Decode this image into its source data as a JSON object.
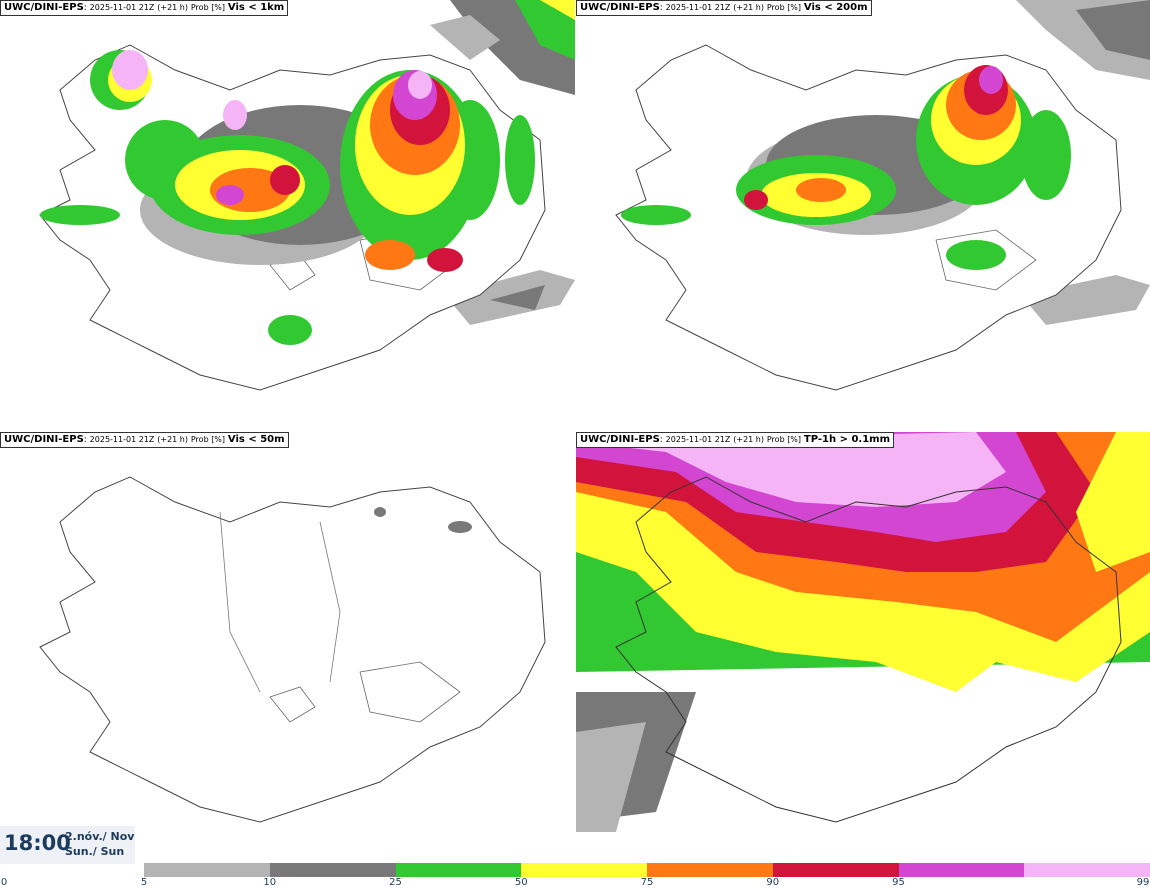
{
  "panels": [
    {
      "source": "UWC/DINI-EPS",
      "run": "2025-11-01 21Z",
      "lead": "(+21 h)",
      "unit": "Prob [%]",
      "field": "Vis < 1km"
    },
    {
      "source": "UWC/DINI-EPS",
      "run": "2025-11-01 21Z",
      "lead": "(+21 h)",
      "unit": "Prob [%]",
      "field": "Vis < 200m"
    },
    {
      "source": "UWC/DINI-EPS",
      "run": "2025-11-01 21Z",
      "lead": "(+21 h)",
      "unit": "Prob [%]",
      "field": "Vis < 50m"
    },
    {
      "source": "UWC/DINI-EPS",
      "run": "2025-11-01 21Z",
      "lead": "(+21 h)",
      "unit": "Prob [%]",
      "field": "TP-1h > 0.1mm"
    }
  ],
  "valid_time": {
    "time": "18:00",
    "date_line1": "2.nóv./ Nov",
    "date_line2": "Sun./ Sun"
  },
  "colorbar": {
    "ticks": [
      "0",
      "5",
      "10",
      "25",
      "50",
      "75",
      "90",
      "95",
      "99"
    ],
    "colors": [
      "#b4b4b4",
      "#787878",
      "#32c832",
      "#ffff32",
      "#ff7814",
      "#d2143c",
      "#d246d2",
      "#f5b4f5"
    ]
  }
}
